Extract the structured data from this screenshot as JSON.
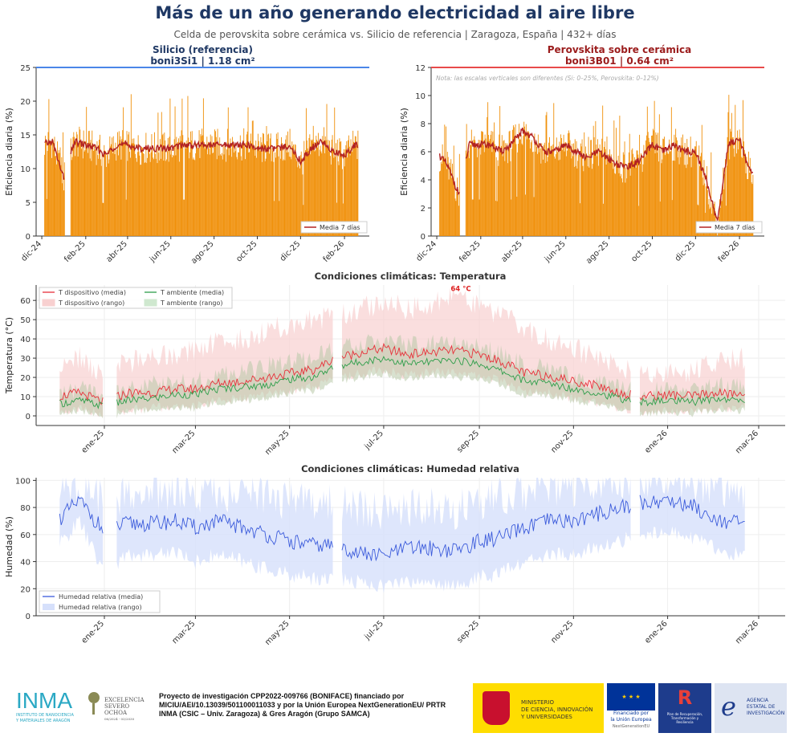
{
  "header": {
    "title": "Más de un año generando electricidad al aire libre",
    "subtitle": "Celda de perovskita sobre cerámica vs. Silicio de referencia  |  Zaragoza, España  |  432+ días"
  },
  "chart_data": [
    {
      "type": "bar",
      "id": "si",
      "title_line1": "Silicio (referencia)",
      "title_line2": "boni3Si1  |  1.18 cm²",
      "ylabel": "Eficiencia diaria (%)",
      "ylim": [
        0,
        25
      ],
      "yticks": [
        0,
        5,
        10,
        15,
        20,
        25
      ],
      "xticks": [
        "dic-24",
        "feb-25",
        "abr-25",
        "jun-25",
        "ago-25",
        "oct-25",
        "dic-25",
        "feb-26"
      ],
      "accent": "#4a86e8",
      "bar_color": "#f0900a",
      "line_color": "#b22222",
      "legend": "Media 7 días",
      "legend_position": "lower-right",
      "date_range": [
        "2024-12-05",
        "2026-02-20"
      ],
      "gaps": [
        [
          "2025-01-03",
          "2025-01-10"
        ]
      ],
      "dates": [
        "2024-12-01",
        "2024-12-16",
        "2025-01-01",
        "2025-01-16",
        "2025-02-01",
        "2025-02-16",
        "2025-03-01",
        "2025-03-16",
        "2025-04-01",
        "2025-04-16",
        "2025-05-01",
        "2025-05-16",
        "2025-06-01",
        "2025-06-16",
        "2025-07-01",
        "2025-07-16",
        "2025-08-01",
        "2025-08-16",
        "2025-09-01",
        "2025-09-16",
        "2025-10-01",
        "2025-10-16",
        "2025-11-01",
        "2025-11-16",
        "2025-12-01",
        "2025-12-16",
        "2026-01-01",
        "2026-01-16",
        "2026-02-01",
        "2026-02-16"
      ],
      "mean_7d": [
        13.5,
        14,
        8.5,
        14,
        13.5,
        13,
        12,
        13.5,
        13.5,
        13,
        13,
        13,
        13,
        13.5,
        13.5,
        13.5,
        13.5,
        13.5,
        13.5,
        13.5,
        13,
        13,
        13,
        13.5,
        11,
        13,
        14,
        12.5,
        12,
        13.5
      ]
    },
    {
      "type": "bar",
      "id": "pk",
      "title_line1": "Perovskita sobre cerámica",
      "title_line2": "boni3B01  |  0.64 cm²",
      "note": "Nota: las escalas verticales son diferentes (Si: 0–25%, Perovskita: 0–12%)",
      "ylabel": "Eficiencia diaria (%)",
      "ylim": [
        0,
        12
      ],
      "yticks": [
        0,
        2,
        4,
        6,
        8,
        10,
        12
      ],
      "xticks": [
        "dic-24",
        "feb-25",
        "abr-25",
        "jun-25",
        "ago-25",
        "oct-25",
        "dic-25",
        "feb-26"
      ],
      "accent": "#e84a4a",
      "bar_color": "#f0900a",
      "line_color": "#b22222",
      "legend": "Media 7 días",
      "legend_position": "lower-right",
      "date_range": [
        "2024-12-05",
        "2026-02-20"
      ],
      "gaps": [
        [
          "2025-01-03",
          "2025-01-10"
        ]
      ],
      "dates": [
        "2024-12-01",
        "2024-12-16",
        "2025-01-01",
        "2025-01-16",
        "2025-02-01",
        "2025-02-16",
        "2025-03-01",
        "2025-03-16",
        "2025-04-01",
        "2025-04-16",
        "2025-05-01",
        "2025-05-16",
        "2025-06-01",
        "2025-06-16",
        "2025-07-01",
        "2025-07-16",
        "2025-08-01",
        "2025-08-16",
        "2025-09-01",
        "2025-09-16",
        "2025-10-01",
        "2025-10-16",
        "2025-11-01",
        "2025-11-16",
        "2025-12-01",
        "2025-12-16",
        "2026-01-01",
        "2026-01-16",
        "2026-02-01",
        "2026-02-16"
      ],
      "mean_7d": [
        6,
        5,
        3,
        6.5,
        6.5,
        6.5,
        6,
        6.5,
        7.5,
        7,
        6,
        6,
        6.5,
        6,
        5.5,
        6,
        5.5,
        5,
        5,
        5.5,
        6.5,
        6,
        6.5,
        6,
        6,
        4,
        1,
        6.5,
        7,
        4.5
      ]
    },
    {
      "type": "area",
      "id": "temp",
      "title": "Condiciones climáticas: Temperatura",
      "ylabel": "Temperatura (°C)",
      "ylim": [
        -5,
        68
      ],
      "yticks": [
        0,
        10,
        20,
        30,
        40,
        50,
        60
      ],
      "xticks": [
        "ene-25",
        "mar-25",
        "may-25",
        "jul-25",
        "sep-25",
        "nov-25",
        "ene-26",
        "mar-26"
      ],
      "grid": true,
      "legend_position": "upper-left",
      "annotation": "64 °C",
      "annotation_date": "2025-08-20",
      "annotation_value": 64,
      "date_range": [
        "2024-12-03",
        "2026-02-20"
      ],
      "gaps": [
        [
          "2025-01-01",
          "2025-01-08"
        ],
        [
          "2025-05-30",
          "2025-06-03"
        ],
        [
          "2025-12-09",
          "2025-12-13"
        ]
      ],
      "series": [
        {
          "name": "T dispositivo (media)",
          "kind": "line",
          "color": "#e8303a"
        },
        {
          "name": "T dispositivo (rango)",
          "kind": "band",
          "color": "#f8d0d0"
        },
        {
          "name": "T ambiente (media)",
          "kind": "line",
          "color": "#2e9e4a"
        },
        {
          "name": "T ambiente (rango)",
          "kind": "band",
          "color": "#cfe8cf"
        }
      ],
      "dates": [
        "2024-12-01",
        "2024-12-16",
        "2025-01-01",
        "2025-01-16",
        "2025-02-01",
        "2025-02-16",
        "2025-03-01",
        "2025-03-16",
        "2025-04-01",
        "2025-04-16",
        "2025-05-01",
        "2025-05-16",
        "2025-06-01",
        "2025-06-16",
        "2025-07-01",
        "2025-07-16",
        "2025-08-01",
        "2025-08-16",
        "2025-09-01",
        "2025-09-16",
        "2025-10-01",
        "2025-10-16",
        "2025-11-01",
        "2025-11-16",
        "2025-12-01",
        "2025-12-16",
        "2026-01-01",
        "2026-01-16",
        "2026-02-01",
        "2026-02-16"
      ],
      "t_dev_mean": [
        10,
        12,
        7,
        12,
        12,
        14,
        14,
        17,
        18,
        20,
        22,
        24,
        30,
        33,
        35,
        32,
        33,
        34,
        32,
        28,
        22,
        21,
        18,
        16,
        12,
        10,
        11,
        10,
        12,
        11
      ],
      "t_dev_max": [
        25,
        30,
        20,
        28,
        30,
        32,
        35,
        38,
        40,
        45,
        48,
        50,
        52,
        55,
        60,
        55,
        58,
        62,
        58,
        52,
        45,
        40,
        35,
        30,
        25,
        22,
        24,
        22,
        28,
        30
      ],
      "t_dev_min": [
        2,
        4,
        0,
        3,
        4,
        5,
        5,
        8,
        9,
        11,
        13,
        15,
        20,
        22,
        24,
        21,
        23,
        22,
        21,
        18,
        12,
        12,
        9,
        7,
        4,
        2,
        3,
        2,
        4,
        4
      ],
      "t_amb_mean": [
        6,
        8,
        5,
        8,
        9,
        11,
        11,
        14,
        15,
        16,
        19,
        20,
        26,
        28,
        30,
        27,
        28,
        29,
        27,
        23,
        18,
        17,
        14,
        12,
        9,
        7,
        8,
        7,
        9,
        8
      ],
      "t_amb_min": [
        1,
        3,
        -2,
        2,
        3,
        4,
        4,
        7,
        8,
        9,
        12,
        13,
        18,
        20,
        22,
        19,
        21,
        20,
        19,
        16,
        11,
        11,
        8,
        6,
        3,
        1,
        2,
        1,
        3,
        3
      ],
      "t_amb_max": [
        12,
        14,
        10,
        14,
        16,
        18,
        18,
        22,
        23,
        26,
        28,
        30,
        35,
        37,
        40,
        36,
        38,
        38,
        36,
        32,
        26,
        25,
        20,
        18,
        14,
        12,
        14,
        13,
        16,
        15
      ]
    },
    {
      "type": "area",
      "id": "hum",
      "title": "Condiciones climáticas: Humedad relativa",
      "ylabel": "Humedad (%)",
      "ylim": [
        0,
        102
      ],
      "yticks": [
        0,
        20,
        40,
        60,
        80,
        100
      ],
      "xticks": [
        "ene-25",
        "mar-25",
        "may-25",
        "jul-25",
        "sep-25",
        "nov-25",
        "ene-26",
        "mar-26"
      ],
      "grid": true,
      "legend_position": "lower-left",
      "date_range": [
        "2024-12-03",
        "2026-02-20"
      ],
      "gaps": [
        [
          "2025-01-01",
          "2025-01-08"
        ],
        [
          "2025-05-30",
          "2025-06-03"
        ],
        [
          "2025-12-09",
          "2025-12-13"
        ]
      ],
      "series": [
        {
          "name": "Humedad relativa (media)",
          "kind": "line",
          "color": "#3b5bdb"
        },
        {
          "name": "Humedad relativa (rango)",
          "kind": "band",
          "color": "#d6e0fb"
        }
      ],
      "dates": [
        "2024-12-01",
        "2024-12-16",
        "2025-01-01",
        "2025-01-16",
        "2025-02-01",
        "2025-02-16",
        "2025-03-01",
        "2025-03-16",
        "2025-04-01",
        "2025-04-16",
        "2025-05-01",
        "2025-05-16",
        "2025-06-01",
        "2025-06-16",
        "2025-07-01",
        "2025-07-16",
        "2025-08-01",
        "2025-08-16",
        "2025-09-01",
        "2025-09-16",
        "2025-10-01",
        "2025-10-16",
        "2025-11-01",
        "2025-11-16",
        "2025-12-01",
        "2025-12-16",
        "2026-01-01",
        "2026-01-16",
        "2026-02-01",
        "2026-02-16"
      ],
      "h_mean": [
        70,
        85,
        62,
        68,
        68,
        70,
        65,
        70,
        65,
        60,
        55,
        52,
        52,
        46,
        44,
        50,
        50,
        48,
        55,
        58,
        65,
        70,
        70,
        75,
        80,
        84,
        85,
        82,
        72,
        68
      ],
      "h_max": [
        90,
        95,
        85,
        90,
        90,
        92,
        90,
        92,
        90,
        88,
        85,
        82,
        85,
        78,
        75,
        80,
        80,
        78,
        85,
        88,
        92,
        95,
        95,
        98,
        100,
        100,
        100,
        100,
        95,
        92
      ],
      "h_min": [
        50,
        70,
        30,
        45,
        45,
        48,
        40,
        45,
        40,
        35,
        30,
        28,
        28,
        25,
        22,
        25,
        25,
        22,
        28,
        32,
        40,
        45,
        45,
        50,
        55,
        62,
        62,
        58,
        50,
        45
      ]
    }
  ],
  "footer": {
    "inma": "INMA",
    "inma_sub1": "INSTITUTO DE NANOCIENCIA",
    "inma_sub2": "Y MATERIALES DE ARAGÓN",
    "severo1": "EXCELENCIA",
    "severo2": "SEVERO",
    "severo3": "OCHOA",
    "severo4": "06/2024 - 03/2030",
    "project_line1": "Proyecto de investigación CPP2022-009766 (BONIFACE) financiado por",
    "project_line2": "MICIU/AEI/10.13039/501100011033 y por la Unión Europea NextGenerationEU/ PRTR",
    "project_line3": "INMA (CSIC – Univ. Zaragoza) & Gres Aragón (Grupo SAMCA)",
    "ministerio1": "MINISTERIO",
    "ministerio2": "DE CIENCIA, INNOVACIÓN",
    "ministerio3": "Y UNIVERSIDADES",
    "eu1": "Financiado por",
    "eu2": "la Unión Europea",
    "eu3": "NextGenerationEU",
    "prtr1": "Plan de Recuperación,",
    "prtr2": "Transformación y",
    "prtr3": "Resiliencia",
    "aei1": "AGENCIA",
    "aei2": "ESTATAL DE",
    "aei3": "INVESTIGACIÓN"
  }
}
